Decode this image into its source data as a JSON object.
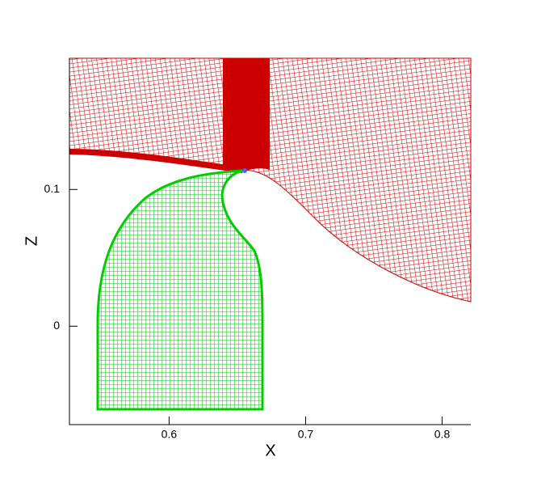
{
  "chart_data": {
    "type": "mesh",
    "x_label": "X",
    "y_label": "Z",
    "xlim": [
      0.527,
      0.821
    ],
    "ylim": [
      -0.072,
      0.196
    ],
    "xticks": [
      0.6,
      0.7,
      0.8
    ],
    "yticks": [
      0,
      0.1
    ]
  }
}
